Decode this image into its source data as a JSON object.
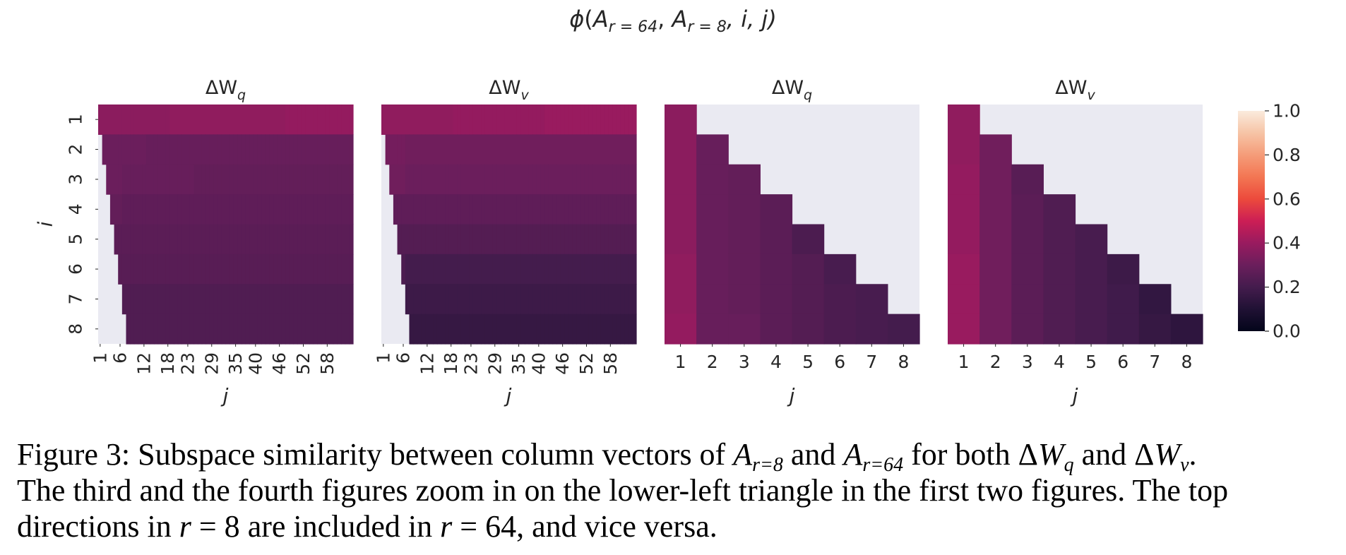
{
  "figure_title": {
    "phi": "ϕ",
    "open": "(",
    "A1": "A",
    "sub1": "r = 64",
    "sep1": ", ",
    "A2": "A",
    "sub2": "r = 8",
    "rest": ", i, j)"
  },
  "chart_data": [
    {
      "type": "heatmap",
      "title_delta": "ΔW",
      "title_sub": "q",
      "xlabel": "j",
      "ylabel": "i",
      "x_ticks": [
        "1",
        "6",
        "12",
        "18",
        "23",
        "29",
        "35",
        "40",
        "46",
        "52",
        "58"
      ],
      "y_ticks": [
        "1",
        "2",
        "3",
        "4",
        "5",
        "6",
        "7",
        "8"
      ],
      "n_cols": 64,
      "masked": "j < i",
      "row_values": [
        [
          0.37,
          0.37,
          0.37,
          0.38,
          0.38,
          0.38,
          0.38,
          0.38,
          0.39,
          0.39,
          0.39
        ],
        [
          0.3,
          0.3,
          0.29,
          0.29,
          0.29,
          0.29,
          0.29,
          0.29,
          0.29,
          0.29,
          0.29
        ],
        [
          0.3,
          0.29,
          0.29,
          0.29,
          0.28,
          0.28,
          0.28,
          0.28,
          0.28,
          0.28,
          0.28
        ],
        [
          0.28,
          0.27,
          0.27,
          0.27,
          0.27,
          0.27,
          0.27,
          0.27,
          0.27,
          0.27,
          0.27
        ],
        [
          0.26,
          0.26,
          0.26,
          0.26,
          0.26,
          0.26,
          0.26,
          0.26,
          0.26,
          0.26,
          0.26
        ],
        [
          0.25,
          0.25,
          0.25,
          0.25,
          0.25,
          0.25,
          0.25,
          0.25,
          0.25,
          0.25,
          0.25
        ],
        [
          0.24,
          0.23,
          0.23,
          0.23,
          0.23,
          0.23,
          0.23,
          0.23,
          0.23,
          0.23,
          0.23
        ],
        [
          0.23,
          0.23,
          0.23,
          0.23,
          0.23,
          0.23,
          0.23,
          0.23,
          0.23,
          0.23,
          0.23
        ]
      ]
    },
    {
      "type": "heatmap",
      "title_delta": "ΔW",
      "title_sub": "v",
      "xlabel": "j",
      "ylabel": "",
      "x_ticks": [
        "1",
        "6",
        "12",
        "18",
        "23",
        "29",
        "35",
        "40",
        "46",
        "52",
        "58"
      ],
      "y_ticks": [],
      "n_cols": 64,
      "masked": "j < i",
      "row_values": [
        [
          0.38,
          0.38,
          0.38,
          0.39,
          0.39,
          0.39,
          0.39,
          0.4,
          0.4,
          0.4,
          0.4
        ],
        [
          0.32,
          0.31,
          0.31,
          0.31,
          0.31,
          0.31,
          0.31,
          0.31,
          0.31,
          0.31,
          0.31
        ],
        [
          0.31,
          0.3,
          0.3,
          0.3,
          0.3,
          0.3,
          0.3,
          0.3,
          0.3,
          0.3,
          0.3
        ],
        [
          0.27,
          0.27,
          0.27,
          0.27,
          0.27,
          0.27,
          0.27,
          0.27,
          0.27,
          0.27,
          0.27
        ],
        [
          0.24,
          0.24,
          0.24,
          0.24,
          0.24,
          0.24,
          0.24,
          0.24,
          0.24,
          0.24,
          0.24
        ],
        [
          0.22,
          0.2,
          0.2,
          0.2,
          0.2,
          0.2,
          0.2,
          0.2,
          0.2,
          0.2,
          0.2
        ],
        [
          0.2,
          0.18,
          0.18,
          0.18,
          0.18,
          0.18,
          0.18,
          0.18,
          0.18,
          0.18,
          0.18
        ],
        [
          0.17,
          0.16,
          0.16,
          0.16,
          0.16,
          0.16,
          0.16,
          0.16,
          0.16,
          0.16,
          0.16
        ]
      ]
    },
    {
      "type": "heatmap",
      "title_delta": "ΔW",
      "title_sub": "q",
      "xlabel": "j",
      "ylabel": "",
      "x_ticks": [
        "1",
        "2",
        "3",
        "4",
        "5",
        "6",
        "7",
        "8"
      ],
      "y_ticks": [],
      "masked": "j < i",
      "values": [
        [
          0.37,
          null,
          null,
          null,
          null,
          null,
          null,
          null
        ],
        [
          0.37,
          0.29,
          null,
          null,
          null,
          null,
          null,
          null
        ],
        [
          0.37,
          0.29,
          0.28,
          null,
          null,
          null,
          null,
          null
        ],
        [
          0.37,
          0.29,
          0.28,
          0.26,
          null,
          null,
          null,
          null
        ],
        [
          0.37,
          0.29,
          0.28,
          0.26,
          0.22,
          null,
          null,
          null
        ],
        [
          0.38,
          0.29,
          0.28,
          0.26,
          0.24,
          0.21,
          null,
          null
        ],
        [
          0.38,
          0.29,
          0.28,
          0.26,
          0.24,
          0.22,
          0.21,
          null
        ],
        [
          0.39,
          0.29,
          0.29,
          0.26,
          0.24,
          0.22,
          0.21,
          0.2
        ]
      ]
    },
    {
      "type": "heatmap",
      "title_delta": "ΔW",
      "title_sub": "v",
      "xlabel": "j",
      "ylabel": "",
      "x_ticks": [
        "1",
        "2",
        "3",
        "4",
        "5",
        "6",
        "7",
        "8"
      ],
      "y_ticks": [],
      "masked": "j < i",
      "values": [
        [
          0.38,
          null,
          null,
          null,
          null,
          null,
          null,
          null
        ],
        [
          0.38,
          0.31,
          null,
          null,
          null,
          null,
          null,
          null
        ],
        [
          0.39,
          0.31,
          0.25,
          null,
          null,
          null,
          null,
          null
        ],
        [
          0.39,
          0.31,
          0.26,
          0.23,
          null,
          null,
          null,
          null
        ],
        [
          0.39,
          0.31,
          0.26,
          0.23,
          0.21,
          null,
          null,
          null
        ],
        [
          0.4,
          0.31,
          0.26,
          0.23,
          0.21,
          0.18,
          null,
          null
        ],
        [
          0.4,
          0.31,
          0.26,
          0.23,
          0.21,
          0.19,
          0.15,
          null
        ],
        [
          0.4,
          0.31,
          0.26,
          0.23,
          0.21,
          0.19,
          0.16,
          0.14
        ]
      ]
    }
  ],
  "colorbar": {
    "ticks": [
      "1.0",
      "0.8",
      "0.6",
      "0.4",
      "0.2",
      "0.0"
    ],
    "tick_values": [
      1.0,
      0.8,
      0.6,
      0.4,
      0.2,
      0.0
    ],
    "range": [
      0,
      1
    ],
    "colormap": "rocket",
    "mask_color": "#eaeaf2"
  },
  "caption": {
    "p1": "Figure 3: Subspace similarity between column vectors of ",
    "A1": "A",
    "s1": "r=8",
    "p2": " and ",
    "A2": "A",
    "s2": "r=64",
    "p3": " for both ",
    "d1": "Δ",
    "W1": "W",
    "q": "q",
    "p4": " and ",
    "d2": "Δ",
    "W2": "W",
    "v": "v",
    "p5": ".",
    "line2": "The third and the fourth figures zoom in on the lower-left triangle in the first two figures.  The top",
    "l3a": "directions in ",
    "r1": "r",
    "eq1": " = 8",
    "l3b": " are included in ",
    "r2": "r",
    "eq2": " = 64",
    "l3c": ", and vice versa."
  }
}
